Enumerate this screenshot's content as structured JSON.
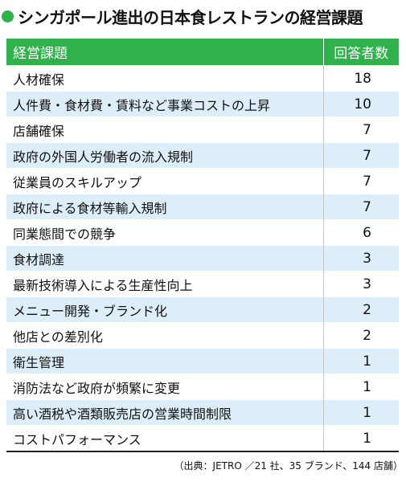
{
  "colors": {
    "accent": "#2fb14b",
    "header_bg": "#2fb14b",
    "row_even": "#ffffff",
    "row_odd": "#ddeef9"
  },
  "title": "シンガポール進出の日本食レストランの経営課題",
  "source": "（出典：JETRO ／21 社、35 ブランド、144 店舗）",
  "chart_data": {
    "type": "table",
    "title": "シンガポール進出の日本食レストランの経営課題",
    "columns": [
      "経営課題",
      "回答者数"
    ],
    "rows": [
      {
        "issue": "人材確保",
        "count": "18"
      },
      {
        "issue": "人件費・食材費・賃料など事業コストの上昇",
        "count": "10"
      },
      {
        "issue": "店舗確保",
        "count": "7"
      },
      {
        "issue": "政府の外国人労働者の流入規制",
        "count": "7"
      },
      {
        "issue": "従業員のスキルアップ",
        "count": "7"
      },
      {
        "issue": "政府による食材等輸入規制",
        "count": "7"
      },
      {
        "issue": "同業態間での競争",
        "count": "6"
      },
      {
        "issue": "食材調達",
        "count": "3"
      },
      {
        "issue": "最新技術導入による生産性向上",
        "count": "3"
      },
      {
        "issue": "メニュー開発・ブランド化",
        "count": "2"
      },
      {
        "issue": "他店との差別化",
        "count": "2"
      },
      {
        "issue": "衛生管理",
        "count": "1"
      },
      {
        "issue": "消防法など政府が頻繁に変更",
        "count": "1"
      },
      {
        "issue": "高い酒税や酒類販売店の営業時間制限",
        "count": "1"
      },
      {
        "issue": "コストパフォーマンス",
        "count": "1"
      }
    ]
  }
}
